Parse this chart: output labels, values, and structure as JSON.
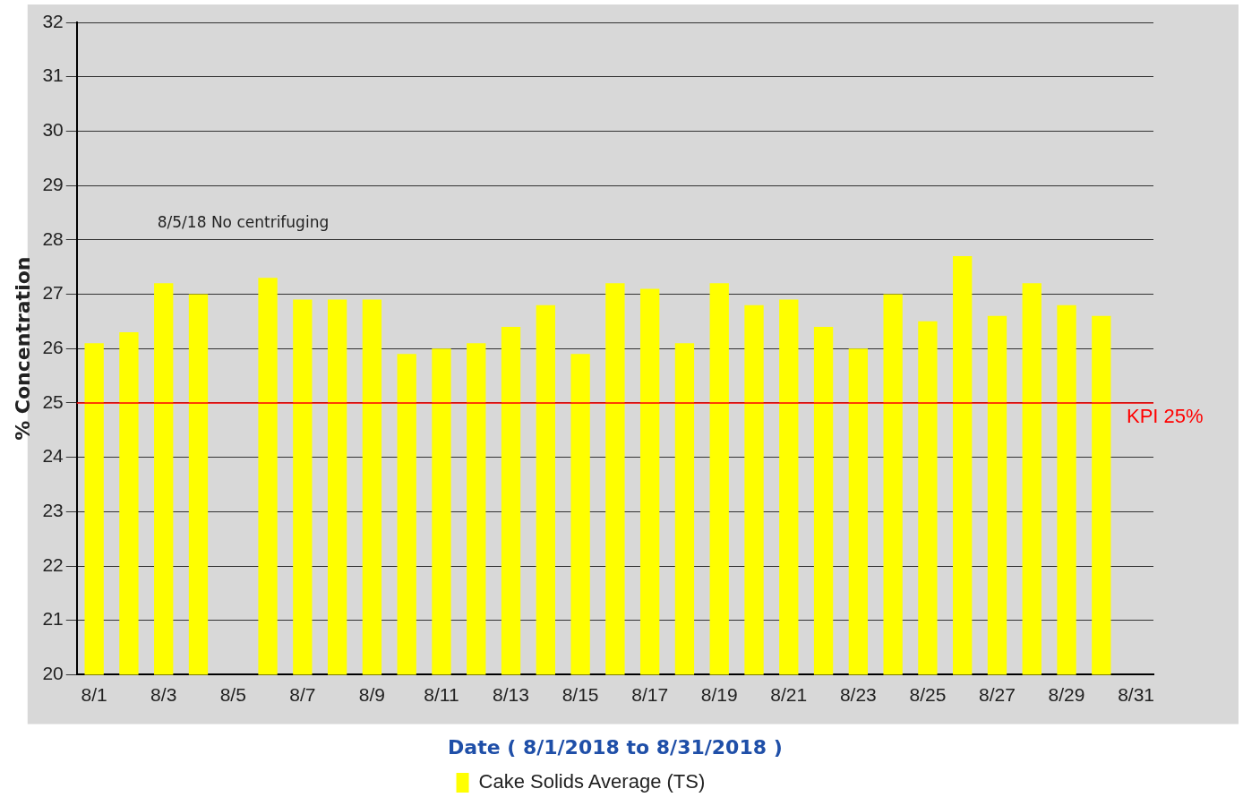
{
  "chart_data": {
    "type": "bar",
    "categories": [
      "8/1",
      null,
      "8/3",
      null,
      "8/5",
      null,
      "8/7",
      null,
      "8/9",
      null,
      "8/11",
      null,
      "8/13",
      null,
      "8/15",
      null,
      "8/17",
      null,
      "8/19",
      null,
      "8/21",
      null,
      "8/23",
      null,
      "8/25",
      null,
      "8/27",
      null,
      "8/29",
      null,
      "8/31"
    ],
    "series": [
      {
        "name": "Cake Solids Average (TS)",
        "color": "#ffff00",
        "values": [
          26.1,
          26.3,
          27.2,
          27.0,
          null,
          27.3,
          26.9,
          26.9,
          26.9,
          25.9,
          26.0,
          26.1,
          26.4,
          26.8,
          25.9,
          27.2,
          27.1,
          26.1,
          27.2,
          26.8,
          26.9,
          26.4,
          26.0,
          27.0,
          26.5,
          27.7,
          26.6,
          27.2,
          26.8,
          26.6,
          null
        ]
      }
    ],
    "xlabel": "Date ( 8/1/2018 to 8/31/2018 )",
    "ylabel": "% Concentration",
    "ylim": [
      20,
      32
    ],
    "yticks": [
      20,
      21,
      22,
      23,
      24,
      25,
      26,
      27,
      28,
      29,
      30,
      31,
      32
    ],
    "ref_lines": [
      {
        "axis": "y",
        "value": 25,
        "label": "KPI 25%",
        "color": "#ff0000"
      }
    ],
    "annotations": [
      "8/5/18 No centrifuging"
    ],
    "grid": "y",
    "legend": "bottom"
  }
}
